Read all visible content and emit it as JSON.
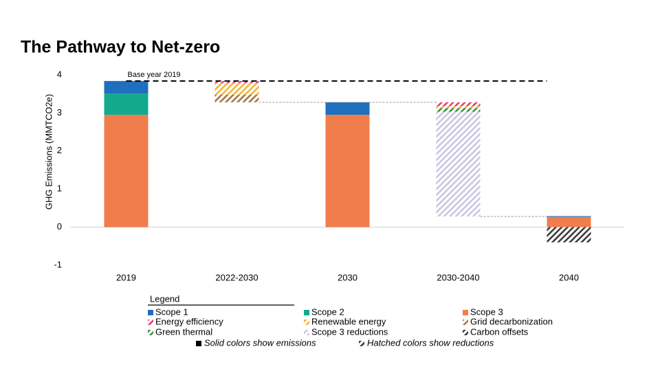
{
  "chart_data": {
    "type": "waterfall",
    "title": "The Pathway to Net-zero",
    "y_label": "GHG Emissions (MMTCO2e)",
    "categories": [
      "2019",
      "2022-2030",
      "2030",
      "2030-2040",
      "2040"
    ],
    "ylim": [
      -1,
      4
    ],
    "yticks": [
      -1,
      0,
      1,
      2,
      3,
      4
    ],
    "reference_line": {
      "label": "Base year 2019",
      "value": 3.84
    },
    "series": [
      {
        "name": "Scope 1",
        "color": "#1f6fbf",
        "pattern": "solid",
        "values": [
          0.33,
          null,
          0.33,
          null,
          0.02
        ]
      },
      {
        "name": "Scope 2",
        "color": "#13a98f",
        "pattern": "solid",
        "values": [
          0.56,
          null,
          null,
          null,
          null
        ]
      },
      {
        "name": "Scope 3",
        "color": "#f07e4d",
        "pattern": "solid",
        "values": [
          2.95,
          null,
          2.95,
          null,
          0.27
        ]
      },
      {
        "name": "Energy efficiency",
        "color": "#e8336e",
        "pattern": "hatched",
        "values": [
          null,
          -0.06,
          null,
          -0.1,
          null
        ]
      },
      {
        "name": "Renewable energy",
        "color": "#f0b429",
        "pattern": "hatched",
        "values": [
          null,
          -0.3,
          null,
          -0.05,
          null
        ]
      },
      {
        "name": "Grid decarbonization",
        "color": "#a0703e",
        "pattern": "hatched",
        "values": [
          null,
          -0.2,
          null,
          null,
          null
        ]
      },
      {
        "name": "Green thermal",
        "color": "#3a8a2a",
        "pattern": "hatched",
        "values": [
          null,
          null,
          null,
          -0.1,
          null
        ]
      },
      {
        "name": "Scope 3 reductions",
        "color": "#c9c3e0",
        "pattern": "hatched",
        "values": [
          null,
          null,
          null,
          -2.75,
          null
        ]
      },
      {
        "name": "Carbon offsets",
        "color": "#333333",
        "pattern": "hatched",
        "values": [
          null,
          null,
          null,
          null,
          -0.4
        ]
      }
    ],
    "legend": {
      "title": "Legend",
      "notes": [
        "Solid colors show emissions",
        "Hatched colors show reductions"
      ]
    }
  }
}
